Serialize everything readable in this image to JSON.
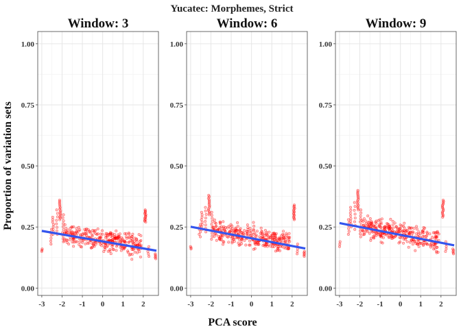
{
  "chart_data": {
    "type": "scatter",
    "title": "Yucatec: Morphemes, Strict",
    "xlabel": "PCA score",
    "ylabel": "Proportion of variation sets",
    "xlim": [
      -3.2,
      2.75
    ],
    "ylim": [
      -0.03,
      1.05
    ],
    "x_ticks": [
      -3,
      -2,
      -1,
      0,
      1,
      2
    ],
    "x_tick_labels": [
      "-3",
      "-2",
      "-1",
      "0",
      "1",
      "2"
    ],
    "y_ticks": [
      0,
      0.25,
      0.5,
      0.75,
      1.0
    ],
    "y_tick_labels": [
      "0.00",
      "0.25",
      "0.50",
      "0.75",
      "1.00"
    ],
    "grid": true,
    "point_color": "#ff0000",
    "fit_color": "#3355ee",
    "panels": [
      {
        "title": "Window: 3",
        "fit": {
          "x": [
            -3.0,
            2.65
          ],
          "y": [
            0.234,
            0.153
          ]
        },
        "point_groups": [
          {
            "x": -3.0,
            "ymin": 0.15,
            "ymax": 0.16,
            "n": 3
          },
          {
            "x": -2.55,
            "ymin": 0.18,
            "ymax": 0.24,
            "n": 6
          },
          {
            "x": -2.45,
            "ymin": 0.22,
            "ymax": 0.29,
            "n": 8
          },
          {
            "x": -2.25,
            "ymin": 0.22,
            "ymax": 0.32,
            "n": 8
          },
          {
            "x": -2.1,
            "ymin": 0.28,
            "ymax": 0.36,
            "n": 14
          },
          {
            "x": -1.95,
            "ymin": 0.19,
            "ymax": 0.3,
            "n": 10
          },
          {
            "x": 2.1,
            "ymin": 0.27,
            "ymax": 0.32,
            "n": 14
          },
          {
            "x": 2.25,
            "ymin": 0.13,
            "ymax": 0.17,
            "n": 5
          },
          {
            "x": 2.6,
            "ymin": 0.12,
            "ymax": 0.14,
            "n": 5
          }
        ],
        "cloud": {
          "xmin": -1.9,
          "xmax": 1.9,
          "n": 320,
          "y_at_left": 0.22,
          "y_at_right": 0.17,
          "spread": 0.045
        }
      },
      {
        "title": "Window: 6",
        "fit": {
          "x": [
            -3.0,
            2.65
          ],
          "y": [
            0.251,
            0.162
          ]
        },
        "point_groups": [
          {
            "x": -3.0,
            "ymin": 0.16,
            "ymax": 0.17,
            "n": 3
          },
          {
            "x": -2.55,
            "ymin": 0.21,
            "ymax": 0.26,
            "n": 6
          },
          {
            "x": -2.45,
            "ymin": 0.24,
            "ymax": 0.31,
            "n": 8
          },
          {
            "x": -2.25,
            "ymin": 0.23,
            "ymax": 0.33,
            "n": 8
          },
          {
            "x": -2.1,
            "ymin": 0.3,
            "ymax": 0.38,
            "n": 14
          },
          {
            "x": -1.95,
            "ymin": 0.2,
            "ymax": 0.31,
            "n": 10
          },
          {
            "x": 2.1,
            "ymin": 0.28,
            "ymax": 0.34,
            "n": 14
          },
          {
            "x": 2.25,
            "ymin": 0.14,
            "ymax": 0.18,
            "n": 5
          },
          {
            "x": 2.6,
            "ymin": 0.13,
            "ymax": 0.15,
            "n": 5
          }
        ],
        "cloud": {
          "xmin": -1.9,
          "xmax": 1.9,
          "n": 320,
          "y_at_left": 0.24,
          "y_at_right": 0.18,
          "spread": 0.045
        }
      },
      {
        "title": "Window: 9",
        "fit": {
          "x": [
            -3.0,
            2.65
          ],
          "y": [
            0.266,
            0.175
          ]
        },
        "point_groups": [
          {
            "x": -3.0,
            "ymin": 0.17,
            "ymax": 0.19,
            "n": 3
          },
          {
            "x": -2.55,
            "ymin": 0.22,
            "ymax": 0.28,
            "n": 6
          },
          {
            "x": -2.45,
            "ymin": 0.25,
            "ymax": 0.33,
            "n": 8
          },
          {
            "x": -2.25,
            "ymin": 0.24,
            "ymax": 0.35,
            "n": 8
          },
          {
            "x": -2.1,
            "ymin": 0.32,
            "ymax": 0.4,
            "n": 14
          },
          {
            "x": -1.95,
            "ymin": 0.21,
            "ymax": 0.32,
            "n": 10
          },
          {
            "x": 2.1,
            "ymin": 0.29,
            "ymax": 0.36,
            "n": 14
          },
          {
            "x": 2.25,
            "ymin": 0.15,
            "ymax": 0.19,
            "n": 5
          },
          {
            "x": 2.6,
            "ymin": 0.14,
            "ymax": 0.16,
            "n": 5
          }
        ],
        "cloud": {
          "xmin": -1.9,
          "xmax": 1.9,
          "n": 320,
          "y_at_left": 0.255,
          "y_at_right": 0.19,
          "spread": 0.045
        }
      }
    ]
  }
}
